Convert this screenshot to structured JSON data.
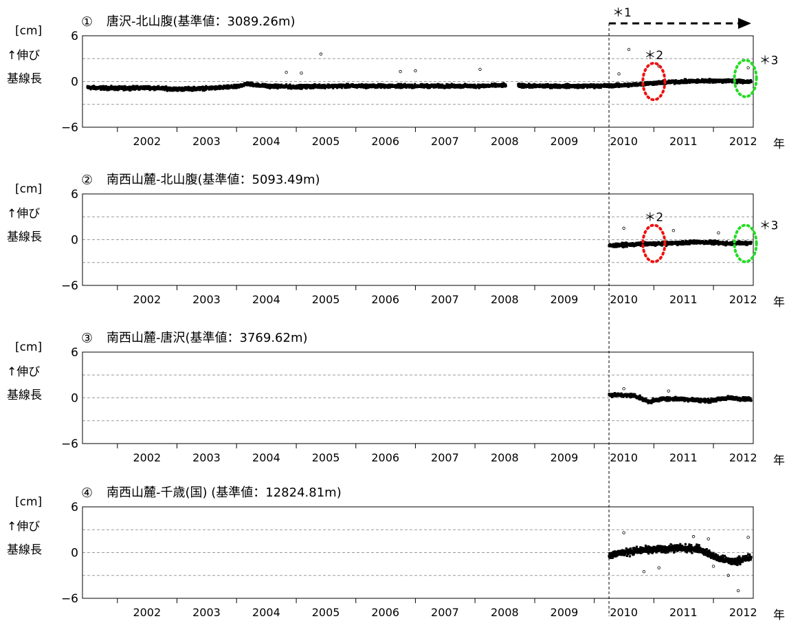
{
  "ui": {
    "unit_label": "[cm]",
    "y_label_line1": "↑伸び",
    "y_label_line2": "基線長",
    "year_unit": "年",
    "note1_label": "＊1",
    "note2_label": "＊2",
    "note3_label": "＊3",
    "note_colors": {
      "note2": "#ee1111",
      "note3": "#22dd22"
    }
  },
  "chart_data": [
    {
      "type": "scatter",
      "number": "①",
      "title": "唐沢-北山腹(基準値：3089.26m)",
      "ylim": [
        -6,
        6
      ],
      "yticks": [
        -6,
        0,
        6
      ],
      "grid_y": [
        -3,
        0,
        3
      ],
      "xlim": [
        "2001-06-01",
        "2012-09-01"
      ],
      "x_tick_labels": [
        "2002",
        "2003",
        "2004",
        "2005",
        "2006",
        "2007",
        "2008",
        "2009",
        "2010",
        "2011",
        "2012"
      ],
      "series": [
        {
          "color": "#000000",
          "points": [
            [
              "2001-07-01",
              -0.8
            ],
            [
              "2002-01-01",
              -0.9
            ],
            [
              "2002-07-01",
              -0.8
            ],
            [
              "2003-01-01",
              -1.0
            ],
            [
              "2003-07-01",
              -0.9
            ],
            [
              "2004-01-01",
              -0.7
            ],
            [
              "2004-03-01",
              -0.3
            ],
            [
              "2004-07-01",
              -0.6
            ],
            [
              "2005-01-01",
              -0.7
            ],
            [
              "2005-07-01",
              -0.6
            ],
            [
              "2006-01-01",
              -0.6
            ],
            [
              "2006-07-01",
              -0.6
            ],
            [
              "2007-01-01",
              -0.6
            ],
            [
              "2007-07-01",
              -0.6
            ],
            [
              "2008-01-01",
              -0.6
            ],
            [
              "2008-07-01",
              -0.5
            ],
            [
              "2009-01-01",
              -0.6
            ],
            [
              "2009-07-01",
              -0.6
            ],
            [
              "2010-01-01",
              -0.6
            ],
            [
              "2010-07-01",
              -0.5
            ],
            [
              "2011-01-01",
              -0.2
            ],
            [
              "2011-07-01",
              0.0
            ],
            [
              "2012-01-01",
              0.1
            ],
            [
              "2012-08-20",
              0.0
            ]
          ],
          "gaps": [
            [
              "2008-07-10",
              "2008-09-20"
            ]
          ]
        }
      ],
      "outliers": [
        [
          "2005-06-01",
          3.6
        ],
        [
          "2004-11-01",
          1.2
        ],
        [
          "2005-02-01",
          1.1
        ],
        [
          "2006-10-01",
          1.3
        ],
        [
          "2007-01-01",
          1.4
        ],
        [
          "2008-02-01",
          1.6
        ],
        [
          "2010-06-01",
          1.0
        ],
        [
          "2010-08-01",
          4.2
        ],
        [
          "2011-02-01",
          2.0
        ],
        [
          "2012-08-01",
          1.8
        ]
      ],
      "annotations": [
        {
          "label": "＊2",
          "kind": "ellipse",
          "color": "#ee1111",
          "center": [
            "2011-01-01",
            0.0
          ],
          "rx_days": 75,
          "ry_cm": 2.4
        },
        {
          "label": "＊3",
          "kind": "ellipse",
          "color": "#22dd22",
          "center": [
            "2012-07-15",
            0.4
          ],
          "rx_days": 75,
          "ry_cm": 2.4
        }
      ]
    },
    {
      "type": "scatter",
      "number": "②",
      "title": "南西山麓-北山腹(基準値：5093.49m)",
      "ylim": [
        -6,
        6
      ],
      "yticks": [
        -6,
        0,
        6
      ],
      "grid_y": [
        -3,
        0,
        3
      ],
      "xlim": [
        "2001-06-01",
        "2012-09-01"
      ],
      "x_tick_labels": [
        "2002",
        "2003",
        "2004",
        "2005",
        "2006",
        "2007",
        "2008",
        "2009",
        "2010",
        "2011",
        "2012"
      ],
      "series": [
        {
          "color": "#000000",
          "points": [
            [
              "2010-04-01",
              -0.8
            ],
            [
              "2010-10-01",
              -0.6
            ],
            [
              "2011-04-01",
              -0.5
            ],
            [
              "2011-10-01",
              -0.3
            ],
            [
              "2012-04-01",
              -0.5
            ],
            [
              "2012-08-20",
              -0.4
            ]
          ],
          "gaps": []
        }
      ],
      "outliers": [
        [
          "2010-07-01",
          1.5
        ],
        [
          "2011-05-01",
          1.2
        ],
        [
          "2012-02-01",
          0.9
        ]
      ],
      "annotations": [
        {
          "label": "＊2",
          "kind": "ellipse",
          "color": "#ee1111",
          "center": [
            "2011-01-01",
            -0.5
          ],
          "rx_days": 75,
          "ry_cm": 2.4
        },
        {
          "label": "＊3",
          "kind": "ellipse",
          "color": "#22dd22",
          "center": [
            "2012-07-15",
            -0.5
          ],
          "rx_days": 75,
          "ry_cm": 2.4
        }
      ]
    },
    {
      "type": "scatter",
      "number": "③",
      "title": "南西山麓-唐沢(基準値：3769.62m)",
      "ylim": [
        -6,
        6
      ],
      "yticks": [
        -6,
        0,
        6
      ],
      "grid_y": [
        -3,
        0,
        3
      ],
      "xlim": [
        "2001-06-01",
        "2012-09-01"
      ],
      "x_tick_labels": [
        "2002",
        "2003",
        "2004",
        "2005",
        "2006",
        "2007",
        "2008",
        "2009",
        "2010",
        "2011",
        "2012"
      ],
      "series": [
        {
          "color": "#000000",
          "points": [
            [
              "2010-04-01",
              0.4
            ],
            [
              "2010-09-01",
              0.3
            ],
            [
              "2010-12-01",
              -0.5
            ],
            [
              "2011-03-01",
              -0.1
            ],
            [
              "2011-08-01",
              -0.2
            ],
            [
              "2011-12-01",
              -0.4
            ],
            [
              "2012-04-01",
              0.0
            ],
            [
              "2012-08-20",
              -0.2
            ]
          ],
          "gaps": []
        }
      ],
      "outliers": [
        [
          "2010-07-01",
          1.2
        ],
        [
          "2011-04-01",
          0.9
        ]
      ],
      "annotations": []
    },
    {
      "type": "scatter",
      "number": "④",
      "title": "南西山麓-千歳(国) (基準値：12824.81m)",
      "ylim": [
        -6,
        6
      ],
      "yticks": [
        -6,
        0,
        6
      ],
      "grid_y": [
        -3,
        0,
        3
      ],
      "xlim": [
        "2001-06-01",
        "2012-09-01"
      ],
      "x_tick_labels": [
        "2002",
        "2003",
        "2004",
        "2005",
        "2006",
        "2007",
        "2008",
        "2009",
        "2010",
        "2011",
        "2012"
      ],
      "series": [
        {
          "color": "#000000",
          "points": [
            [
              "2010-04-01",
              -0.3
            ],
            [
              "2010-09-01",
              0.2
            ],
            [
              "2011-01-01",
              0.4
            ],
            [
              "2011-06-01",
              0.6
            ],
            [
              "2011-10-01",
              0.5
            ],
            [
              "2012-02-01",
              -0.8
            ],
            [
              "2012-05-01",
              -1.2
            ],
            [
              "2012-08-20",
              -0.6
            ]
          ],
          "gaps": []
        }
      ],
      "outliers": [
        [
          "2010-07-01",
          2.6
        ],
        [
          "2010-11-01",
          -2.5
        ],
        [
          "2011-02-01",
          -2.0
        ],
        [
          "2011-09-01",
          2.1
        ],
        [
          "2012-01-01",
          -1.8
        ],
        [
          "2012-04-01",
          -3.0
        ],
        [
          "2012-06-01",
          -5.0
        ],
        [
          "2012-08-01",
          2.0
        ],
        [
          "2011-12-01",
          1.8
        ]
      ],
      "annotations": []
    }
  ]
}
